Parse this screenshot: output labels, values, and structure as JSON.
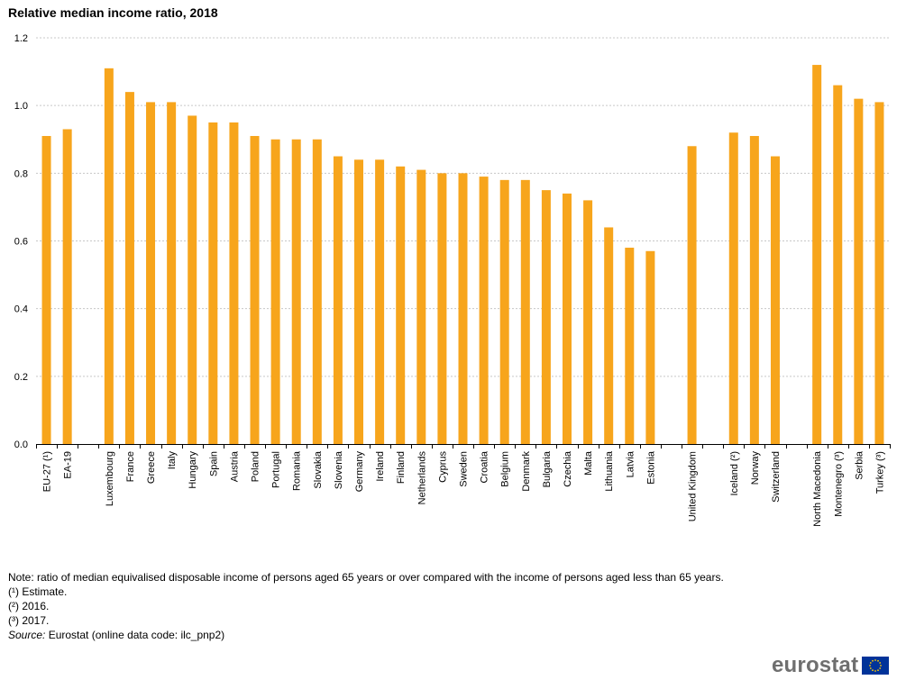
{
  "chart_data": {
    "type": "bar",
    "title": "Relative median income ratio, 2018",
    "xlabel": "",
    "ylabel": "",
    "ylim": [
      0,
      1.2
    ],
    "yticks": [
      "0.0",
      "0.2",
      "0.4",
      "0.6",
      "0.8",
      "1.0",
      "1.2"
    ],
    "ytick_values": [
      0,
      0.2,
      0.4,
      0.6,
      0.8,
      1.0,
      1.2
    ],
    "grid": true,
    "bar_color": "#f7a51c",
    "grid_color": "#c8c8c8",
    "groups": [
      [
        "EU-27 (¹)",
        "EA-19"
      ],
      [
        "Luxembourg",
        "France",
        "Greece",
        "Italy",
        "Hungary",
        "Spain",
        "Austria",
        "Poland",
        "Portugal",
        "Romania",
        "Slovakia",
        "Slovenia",
        "Germany",
        "Ireland",
        "Finland",
        "Netherlands",
        "Cyprus",
        "Sweden",
        "Croatia",
        "Belgium",
        "Denmark",
        "Bulgaria",
        "Czechia",
        "Malta",
        "Lithuania",
        "Latvia",
        "Estonia"
      ],
      [
        "United Kingdom"
      ],
      [
        "Iceland (²)",
        "Norway",
        "Switzerland"
      ],
      [
        "North Macedonia",
        "Montenegro (³)",
        "Serbia",
        "Turkey (³)"
      ]
    ],
    "values": [
      [
        0.91,
        0.93
      ],
      [
        1.11,
        1.04,
        1.01,
        1.01,
        0.97,
        0.95,
        0.95,
        0.91,
        0.9,
        0.9,
        0.9,
        0.85,
        0.84,
        0.84,
        0.82,
        0.81,
        0.8,
        0.8,
        0.79,
        0.78,
        0.78,
        0.75,
        0.74,
        0.72,
        0.64,
        0.58,
        0.57
      ],
      [
        0.88
      ],
      [
        0.92,
        0.91,
        0.85
      ],
      [
        1.12,
        1.06,
        1.02,
        1.01
      ]
    ]
  },
  "notes": {
    "note": "Note: ratio of median equivalised disposable income of persons aged 65 years or over compared with the income of persons aged less than 65 years.",
    "footnote1": "(¹) Estimate.",
    "footnote2": "(²) 2016.",
    "footnote3": "(³) 2017.",
    "source_label": "Source:",
    "source_text": " Eurostat (online data code: ilc_pnp2)"
  },
  "logo": {
    "text": "eurostat",
    "flag_color": "#003399",
    "star_color": "#ffcc00"
  }
}
